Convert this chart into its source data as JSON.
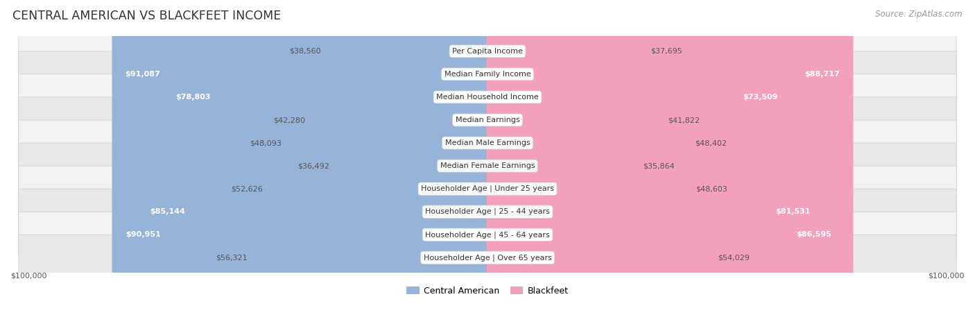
{
  "title": "CENTRAL AMERICAN VS BLACKFEET INCOME",
  "source": "Source: ZipAtlas.com",
  "categories": [
    "Per Capita Income",
    "Median Family Income",
    "Median Household Income",
    "Median Earnings",
    "Median Male Earnings",
    "Median Female Earnings",
    "Householder Age | Under 25 years",
    "Householder Age | 25 - 44 years",
    "Householder Age | 45 - 64 years",
    "Householder Age | Over 65 years"
  ],
  "central_american": [
    38560,
    91087,
    78803,
    42280,
    48093,
    36492,
    52626,
    85144,
    90951,
    56321
  ],
  "blackfeet": [
    37695,
    88717,
    73509,
    41822,
    48402,
    35864,
    48603,
    81531,
    86595,
    54029
  ],
  "max_value": 100000,
  "blue_color": "#96B4D8",
  "pink_color": "#F2A0BC",
  "blue_dark_color": "#6890C0",
  "pink_dark_color": "#E8709A",
  "row_bg_even": "#F2F2F2",
  "row_bg_odd": "#E8E8E8",
  "label_fontsize": 8.0,
  "value_fontsize": 8.0,
  "title_fontsize": 12.5,
  "legend_fontsize": 9,
  "source_fontsize": 8.5,
  "inside_threshold": 65000
}
